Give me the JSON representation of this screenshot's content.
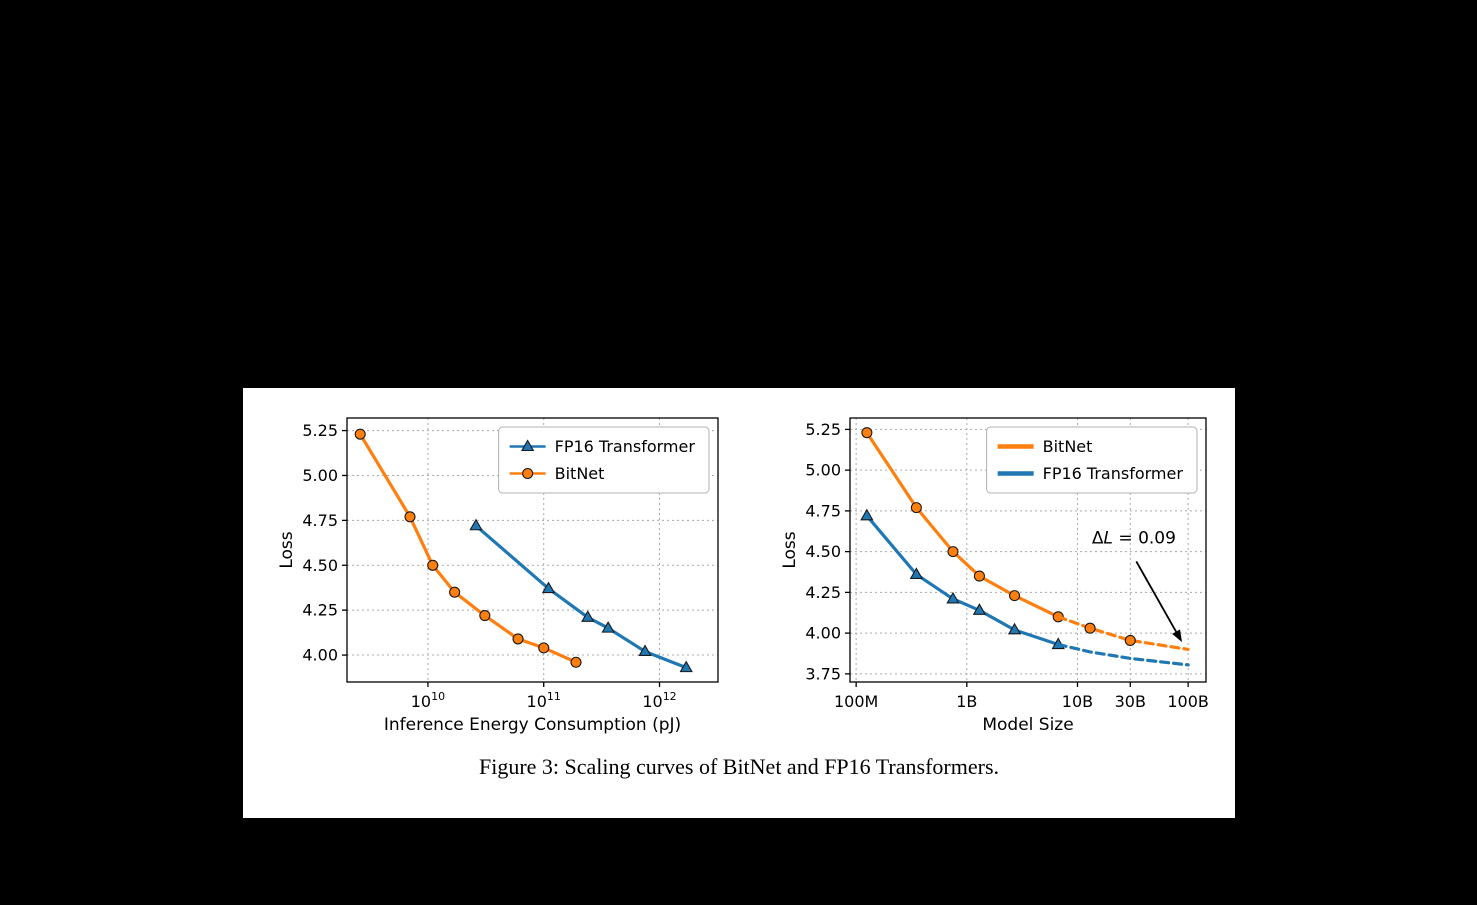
{
  "page": {
    "background": "#000000"
  },
  "figure": {
    "caption": "Figure 3: Scaling curves of BitNet and FP16 Transformers.",
    "background": "#ffffff"
  },
  "colors": {
    "bitnet": "#ff7f0e",
    "fp16": "#1f77b4",
    "grid": "#aaaaaa",
    "axis": "#000000",
    "legend_border": "#b0b0b0"
  },
  "chart_data": [
    {
      "type": "line",
      "name": "energy-vs-loss",
      "xlabel": "Inference Energy Consumption (pJ)",
      "ylabel": "Loss",
      "xscale": "log",
      "xlim": [
        2000000000.0,
        3200000000000.0
      ],
      "ylim": [
        3.85,
        5.32
      ],
      "yticks": [
        4.0,
        4.25,
        4.5,
        4.75,
        5.0,
        5.25
      ],
      "xticks": [
        {
          "v": 10000000000.0,
          "base": "10",
          "exp": "10"
        },
        {
          "v": 100000000000.0,
          "base": "10",
          "exp": "11"
        },
        {
          "v": 1000000000000.0,
          "base": "10",
          "exp": "12"
        }
      ],
      "grid": true,
      "legend": {
        "position": "upper-right",
        "order": [
          "FP16 Transformer",
          "BitNet"
        ]
      },
      "series": [
        {
          "name": "FP16 Transformer",
          "color": "fp16",
          "marker": "triangle",
          "legend_swatch": "line-marker",
          "segments": [
            {
              "style": "solid",
              "markers": true,
              "points": [
                [
                  26000000000.0,
                  4.72
                ],
                [
                  110000000000.0,
                  4.37
                ],
                [
                  240000000000.0,
                  4.21
                ],
                [
                  360000000000.0,
                  4.15
                ],
                [
                  750000000000.0,
                  4.02
                ],
                [
                  1700000000000.0,
                  3.93
                ]
              ]
            }
          ]
        },
        {
          "name": "BitNet",
          "color": "bitnet",
          "marker": "circle",
          "legend_swatch": "line-marker",
          "segments": [
            {
              "style": "solid",
              "markers": true,
              "points": [
                [
                  2600000000.0,
                  5.23
                ],
                [
                  7000000000.0,
                  4.77
                ],
                [
                  11000000000.0,
                  4.5
                ],
                [
                  17000000000.0,
                  4.35
                ],
                [
                  31000000000.0,
                  4.22
                ],
                [
                  60000000000.0,
                  4.09
                ],
                [
                  100000000000.0,
                  4.04
                ],
                [
                  190000000000.0,
                  3.96
                ]
              ]
            }
          ]
        }
      ]
    },
    {
      "type": "line",
      "name": "modelsize-vs-loss",
      "xlabel": "Model Size",
      "ylabel": "Loss",
      "xscale": "log",
      "xlim": [
        88000000.0,
        145000000000.0
      ],
      "ylim": [
        3.7,
        5.32
      ],
      "yticks": [
        3.75,
        4.0,
        4.25,
        4.5,
        4.75,
        5.0,
        5.25
      ],
      "xticks": [
        {
          "v": 100000000.0,
          "label": "100M"
        },
        {
          "v": 1000000000.0,
          "label": "1B"
        },
        {
          "v": 10000000000.0,
          "label": "10B"
        },
        {
          "v": 30000000000.0,
          "label": "30B"
        },
        {
          "v": 100000000000.0,
          "label": "100B"
        }
      ],
      "grid": true,
      "legend": {
        "position": "upper-right",
        "order": [
          "BitNet",
          "FP16 Transformer"
        ]
      },
      "annotation": {
        "text_delta": "Δ",
        "text_var": "L",
        "text_rest": " = 0.09",
        "text_xy": [
          13500000000.0,
          4.55
        ],
        "arrow_from": [
          34000000000.0,
          4.44
        ],
        "arrow_to": [
          88000000000.0,
          3.945
        ]
      },
      "series": [
        {
          "name": "BitNet",
          "color": "bitnet",
          "marker": "circle",
          "legend_swatch": "line",
          "segments": [
            {
              "style": "solid",
              "markers": true,
              "points": [
                [
                  125000000.0,
                  5.23
                ],
                [
                  350000000.0,
                  4.77
                ],
                [
                  750000000.0,
                  4.5
                ],
                [
                  1300000000.0,
                  4.35
                ],
                [
                  2700000000.0,
                  4.23
                ],
                [
                  6700000000.0,
                  4.1
                ]
              ]
            },
            {
              "style": "dashed",
              "marker_points": [
                [
                  13000000000.0,
                  4.03
                ],
                [
                  30000000000.0,
                  3.955
                ]
              ],
              "points": [
                [
                  6700000000.0,
                  4.1
                ],
                [
                  13000000000.0,
                  4.03
                ],
                [
                  30000000000.0,
                  3.955
                ],
                [
                  100000000000.0,
                  3.9
                ]
              ]
            }
          ]
        },
        {
          "name": "FP16 Transformer",
          "color": "fp16",
          "marker": "triangle",
          "legend_swatch": "line",
          "segments": [
            {
              "style": "solid",
              "markers": true,
              "points": [
                [
                  125000000.0,
                  4.72
                ],
                [
                  350000000.0,
                  4.36
                ],
                [
                  750000000.0,
                  4.21
                ],
                [
                  1300000000.0,
                  4.14
                ],
                [
                  2700000000.0,
                  4.02
                ],
                [
                  6700000000.0,
                  3.93
                ]
              ]
            },
            {
              "style": "dashed",
              "markers": false,
              "points": [
                [
                  6700000000.0,
                  3.93
                ],
                [
                  13000000000.0,
                  3.885
                ],
                [
                  30000000000.0,
                  3.845
                ],
                [
                  100000000000.0,
                  3.805
                ]
              ]
            }
          ]
        }
      ]
    }
  ]
}
